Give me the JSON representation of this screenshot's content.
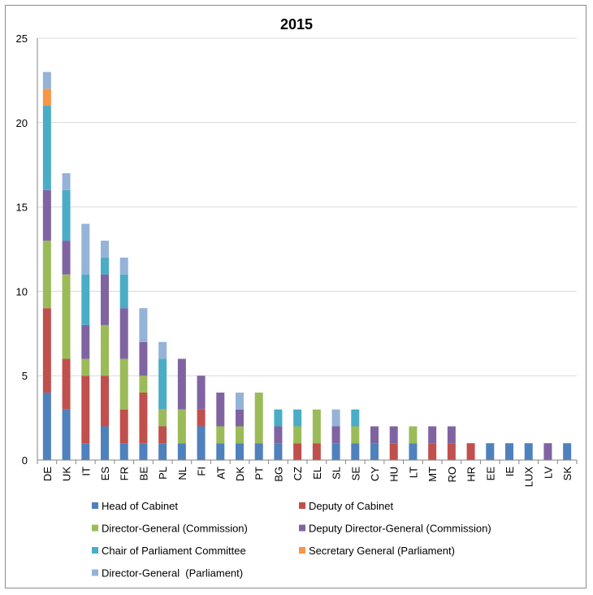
{
  "chart_data": {
    "type": "bar",
    "stacked": true,
    "title": "2015",
    "xlabel": "",
    "ylabel": "",
    "ylim": [
      0,
      25
    ],
    "yticks": [
      0,
      5,
      10,
      15,
      20,
      25
    ],
    "grid": true,
    "legend_position": "bottom",
    "categories": [
      "DE",
      "UK",
      "IT",
      "ES",
      "FR",
      "BE",
      "PL",
      "NL",
      "FI",
      "AT",
      "DK",
      "PT",
      "BG",
      "CZ",
      "EL",
      "SL",
      "SE",
      "CY",
      "HU",
      "LT",
      "MT",
      "RO",
      "HR",
      "EE",
      "IE",
      "LUX",
      "LV",
      "SK"
    ],
    "series": [
      {
        "name": "Head of Cabinet",
        "color": "#4f81bd",
        "values": [
          4,
          3,
          1,
          2,
          1,
          1,
          1,
          1,
          2,
          1,
          1,
          1,
          1,
          0,
          0,
          1,
          1,
          1,
          0,
          1,
          0,
          0,
          0,
          1,
          1,
          1,
          0,
          1
        ]
      },
      {
        "name": "Deputy of Cabinet",
        "color": "#c0504d",
        "values": [
          5,
          3,
          4,
          3,
          2,
          3,
          1,
          0,
          1,
          0,
          0,
          0,
          0,
          1,
          1,
          0,
          0,
          0,
          1,
          0,
          1,
          1,
          1,
          0,
          0,
          0,
          0,
          0
        ]
      },
      {
        "name": "Director-General (Commission)",
        "color": "#9bbb59",
        "values": [
          4,
          5,
          1,
          3,
          3,
          1,
          1,
          2,
          0,
          1,
          1,
          3,
          0,
          1,
          2,
          0,
          1,
          0,
          0,
          1,
          0,
          0,
          0,
          0,
          0,
          0,
          0,
          0
        ]
      },
      {
        "name": "Deputy Director-General (Commission)",
        "color": "#8064a2",
        "values": [
          3,
          2,
          2,
          3,
          3,
          2,
          0,
          3,
          2,
          2,
          1,
          0,
          1,
          0,
          0,
          1,
          0,
          1,
          1,
          0,
          1,
          1,
          0,
          0,
          0,
          0,
          1,
          0
        ]
      },
      {
        "name": "Chair of Parliament Committee",
        "color": "#4bacc6",
        "values": [
          5,
          3,
          3,
          1,
          2,
          0,
          3,
          0,
          0,
          0,
          0,
          0,
          1,
          1,
          0,
          0,
          1,
          0,
          0,
          0,
          0,
          0,
          0,
          0,
          0,
          0,
          0,
          0
        ]
      },
      {
        "name": "Secretary General (Parliament)",
        "color": "#f79646",
        "values": [
          1,
          0,
          0,
          0,
          0,
          0,
          0,
          0,
          0,
          0,
          0,
          0,
          0,
          0,
          0,
          0,
          0,
          0,
          0,
          0,
          0,
          0,
          0,
          0,
          0,
          0,
          0,
          0
        ]
      },
      {
        "name": "Director-General  (Parliament)",
        "color": "#95b3d7",
        "values": [
          1,
          1,
          3,
          1,
          1,
          2,
          1,
          0,
          0,
          0,
          1,
          0,
          0,
          0,
          0,
          1,
          0,
          0,
          0,
          0,
          0,
          0,
          0,
          0,
          0,
          0,
          0,
          0
        ]
      }
    ]
  }
}
